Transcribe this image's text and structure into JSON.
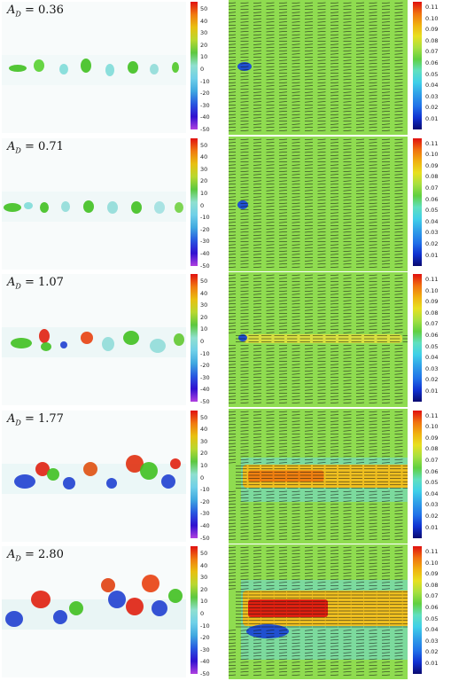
{
  "panels": [
    {
      "label_prefix": "A",
      "label_sub": "D",
      "value": "= 0.36"
    },
    {
      "label_prefix": "A",
      "label_sub": "D",
      "value": "= 0.71"
    },
    {
      "label_prefix": "A",
      "label_sub": "D",
      "value": "= 1.07"
    },
    {
      "label_prefix": "A",
      "label_sub": "D",
      "value": "= 1.77"
    },
    {
      "label_prefix": "A",
      "label_sub": "D",
      "value": "= 2.80"
    }
  ],
  "vorticity_colorbar_ticks": [
    "50",
    "40",
    "30",
    "20",
    "10",
    "0",
    "-10",
    "-20",
    "-30",
    "-40",
    "-50"
  ],
  "velocity_colorbar_ticks": [
    "0.11",
    "0.10",
    "0.09",
    "0.08",
    "0.07",
    "0.06",
    "0.05",
    "0.04",
    "0.03",
    "0.02",
    "0.01"
  ],
  "colors": {
    "background_field": "#8fdc50",
    "jet_core": "#e02010",
    "wake_low": "#2040d0",
    "vortex_positive": "#40c020",
    "vortex_negative": "#70d8e0"
  }
}
